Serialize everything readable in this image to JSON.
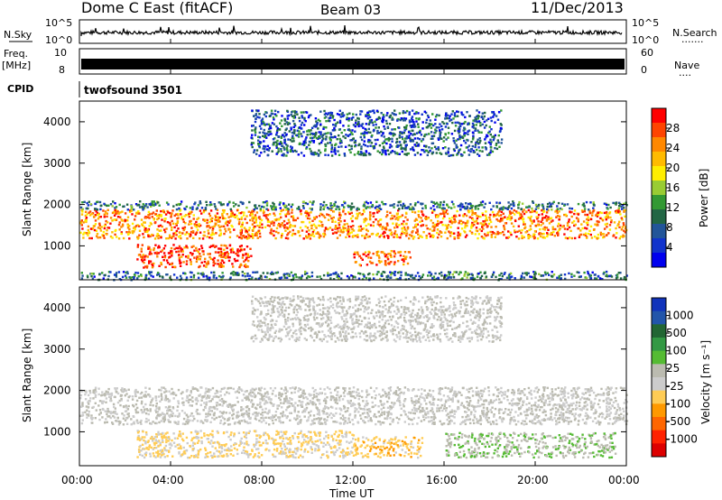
{
  "header": {
    "station": "Dome C East (fitACF)",
    "beam": "Beam 03",
    "date": "11/Dec/2013"
  },
  "nsky_panel": {
    "label": "N.Sky",
    "ytick_top": "10^5",
    "ytick_bottom": "10^0",
    "right_label": "N.Search",
    "right_dots": "·······",
    "right_tick_top": "10^5",
    "right_tick_bottom": "10^0",
    "series_color": "#000000"
  },
  "freq_panel": {
    "label_line1": "Freq.",
    "label_line2": "[MHz]",
    "ytick_top": "10",
    "ytick_bottom": "8",
    "right_label": "Nave",
    "right_dots": "····",
    "right_tick_top": "60",
    "right_tick_bottom": "0"
  },
  "cpid_panel": {
    "label": "CPID",
    "value": "twofsound 3501"
  },
  "power_panel": {
    "ylabel": "Slant Range [km]",
    "yticks": [
      "4000",
      "3000",
      "2000",
      "1000"
    ],
    "colorbar_label": "Power [dB]",
    "colorbar_ticks": [
      "28",
      "24",
      "20",
      "16",
      "12",
      "8",
      "4"
    ],
    "colorbar_colors": [
      "#ff0000",
      "#ff4400",
      "#ff8800",
      "#ffbb00",
      "#ffee00",
      "#99cc33",
      "#339933",
      "#226644",
      "#225599",
      "#1133cc",
      "#0000ee"
    ]
  },
  "velocity_panel": {
    "ylabel": "Slant Range [km]",
    "yticks": [
      "4000",
      "3000",
      "2000",
      "1000"
    ],
    "colorbar_label": "Velocity [m s⁻¹]",
    "colorbar_ticks": [
      "1000",
      "500",
      "100",
      "25",
      "-25",
      "-100",
      "-500",
      "-1000"
    ],
    "colorbar_colors": [
      "#1133bb",
      "#2255aa",
      "#226633",
      "#339944",
      "#55bb33",
      "#bbbbb0",
      "#cccccc",
      "#ffcc55",
      "#ff9900",
      "#ff6600",
      "#ff2200",
      "#dd0000"
    ]
  },
  "x_axis": {
    "ticks": [
      "00:00",
      "04:00",
      "08:00",
      "12:00",
      "16:00",
      "20:00",
      "00:00"
    ],
    "label": "Time UT"
  },
  "chart_data": [
    {
      "type": "line",
      "name": "N.Sky",
      "x_range_hours": [
        0,
        24
      ],
      "y_scale": "log",
      "ylim": [
        1,
        100000
      ],
      "description_free": true
    },
    {
      "type": "heatmap",
      "quantity": "Power [dB]",
      "x_range_hours": [
        0,
        24
      ],
      "ylim_km": [
        180,
        4500
      ],
      "clim": [
        0,
        30
      ],
      "regions": [
        {
          "t0": 0.0,
          "t1": 24.0,
          "r0": 1200,
          "r1": 1900,
          "value": 24
        },
        {
          "t0": 2.5,
          "t1": 7.5,
          "r0": 500,
          "r1": 1050,
          "value": 28
        },
        {
          "t0": 12.0,
          "t1": 14.5,
          "r0": 550,
          "r1": 900,
          "value": 26
        },
        {
          "t0": 0.0,
          "t1": 24.0,
          "r0": 1900,
          "r1": 2100,
          "value": 8
        },
        {
          "t0": 7.5,
          "t1": 18.5,
          "r0": 3200,
          "r1": 4300,
          "value": 6
        },
        {
          "t0": 0.0,
          "t1": 24.0,
          "r0": 200,
          "r1": 400,
          "value": 8
        }
      ]
    },
    {
      "type": "heatmap",
      "quantity": "Velocity [m s-1]",
      "x_range_hours": [
        0,
        24
      ],
      "ylim_km": [
        180,
        4500
      ],
      "clim": [
        -1000,
        1000
      ],
      "regions": [
        {
          "t0": 0.0,
          "t1": 24.0,
          "r0": 1200,
          "r1": 2100,
          "value": 0
        },
        {
          "t0": 2.5,
          "t1": 12.0,
          "r0": 400,
          "r1": 1050,
          "value": -200
        },
        {
          "t0": 12.0,
          "t1": 15.0,
          "r0": 400,
          "r1": 900,
          "value": -300
        },
        {
          "t0": 16.0,
          "t1": 23.5,
          "r0": 400,
          "r1": 1000,
          "value": 150
        },
        {
          "t0": 7.5,
          "t1": 18.5,
          "r0": 3200,
          "r1": 4300,
          "value": 0
        }
      ]
    }
  ]
}
